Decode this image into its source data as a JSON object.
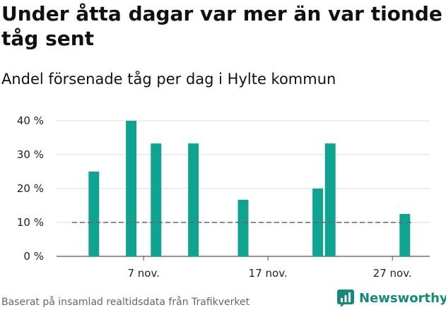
{
  "header": {
    "title": "Under åtta dagar var mer än var tionde tåg sent",
    "subtitle": "Andel försenade tåg per dag i Hylte kommun"
  },
  "footer": {
    "source": "Baserat på insamlad realtidsdata från Trafikverket",
    "logo_text": "Newsworthy"
  },
  "colors": {
    "bar": "#0fa391",
    "reference_line": "#666666",
    "grid": "#dddddd",
    "brand": "#14897d"
  },
  "chart_data": {
    "type": "bar",
    "title": "Under åtta dagar var mer än var tionde tåg sent",
    "subtitle": "Andel försenade tåg per dag i Hylte kommun",
    "xlabel": "",
    "ylabel": "",
    "x_dates": [
      "2023-11-03",
      "2023-11-06",
      "2023-11-08",
      "2023-11-11",
      "2023-11-15",
      "2023-11-21",
      "2023-11-22",
      "2023-11-28"
    ],
    "values": [
      25,
      40,
      33.3,
      33.3,
      16.7,
      20,
      33.3,
      12.5
    ],
    "unit": "%",
    "ylim": [
      0,
      40
    ],
    "yticks": [
      0,
      10,
      20,
      30,
      40
    ],
    "ytick_labels": [
      "0 %",
      "10 %",
      "20 %",
      "30 %",
      "40 %"
    ],
    "xticks": [
      "2023-11-07",
      "2023-11-17",
      "2023-11-27"
    ],
    "xtick_labels": [
      "7 nov.",
      "17 nov.",
      "27 nov."
    ],
    "xlim": [
      "2023-10-31",
      "2023-11-30"
    ],
    "reference_line": 10,
    "grid": true
  }
}
